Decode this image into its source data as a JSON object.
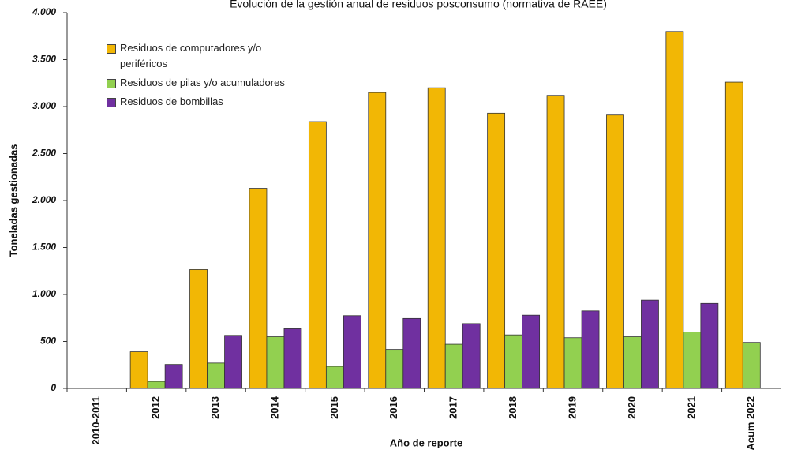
{
  "chart_data": {
    "type": "bar",
    "title": "Evolución de la gestión anual de residuos posconsumo (normativa de RAEE)",
    "x_label": "Año de reporte",
    "y_label": "Toneladas gestionadas",
    "categories": [
      "2010-2011",
      "2012",
      "2013",
      "2014",
      "2015",
      "2016",
      "2017",
      "2018",
      "2019",
      "2020",
      "2021",
      "Acum 2022"
    ],
    "series": [
      {
        "name": "Residuos de computadores y/o periféricos",
        "color": "#f2b705",
        "values": [
          null,
          390,
          1265,
          2130,
          2840,
          3150,
          3200,
          2930,
          3120,
          2910,
          3800,
          3260
        ]
      },
      {
        "name": "Residuos de pilas y/o acumuladores",
        "color": "#92d050",
        "values": [
          null,
          75,
          270,
          550,
          235,
          415,
          470,
          570,
          540,
          550,
          600,
          490
        ]
      },
      {
        "name": "Residuos de bombillas",
        "color": "#7030a0",
        "values": [
          null,
          255,
          565,
          635,
          775,
          745,
          690,
          780,
          825,
          940,
          905,
          null
        ]
      }
    ],
    "ylim": [
      0,
      4000
    ],
    "yticks": [
      0,
      500,
      {
        "value": 1000,
        "label": "1.000"
      },
      {
        "value": 1500,
        "label": "1.500"
      },
      {
        "value": 2000,
        "label": "2.000"
      },
      {
        "value": 2500,
        "label": "2.500"
      },
      {
        "value": 3000,
        "label": "3.000"
      },
      {
        "value": 3500,
        "label": "3.500"
      },
      {
        "value": 4000,
        "label": "4.000"
      }
    ],
    "grid": false,
    "legend": "upper left"
  }
}
